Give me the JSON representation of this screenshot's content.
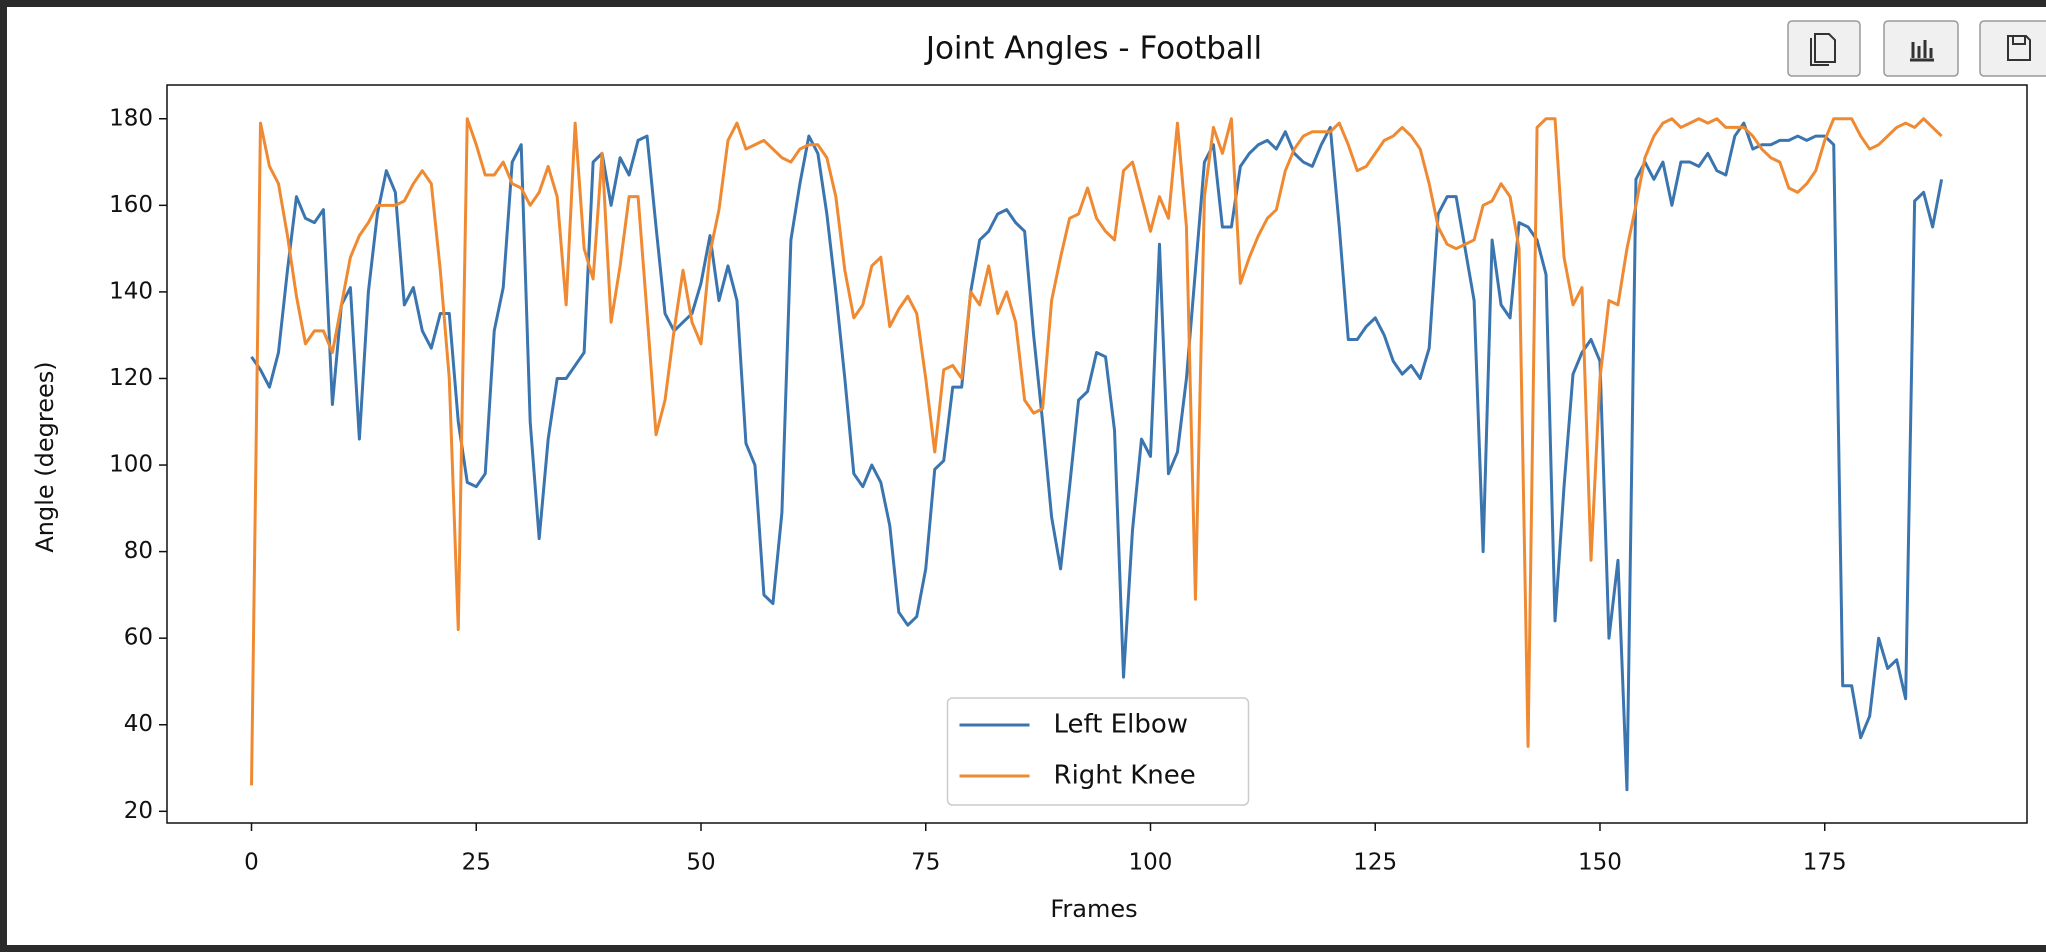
{
  "chart_data": {
    "type": "line",
    "title": "Joint Angles - Football",
    "xlabel": "Frames",
    "ylabel": "Angle (degrees)",
    "x": [
      0,
      1,
      2,
      3,
      4,
      5,
      6,
      7,
      8,
      9,
      10,
      11,
      12,
      13,
      14,
      15,
      16,
      17,
      18,
      19,
      20,
      21,
      22,
      23,
      24,
      25,
      26,
      27,
      28,
      29,
      30,
      31,
      32,
      33,
      34,
      35,
      36,
      37,
      38,
      39,
      40,
      41,
      42,
      43,
      44,
      45,
      46,
      47,
      48,
      49,
      50,
      51,
      52,
      53,
      54,
      55,
      56,
      57,
      58,
      59,
      60,
      61,
      62,
      63,
      64,
      65,
      66,
      67,
      68,
      69,
      70,
      71,
      72,
      73,
      74,
      75,
      76,
      77,
      78,
      79,
      80,
      81,
      82,
      83,
      84,
      85,
      86,
      87,
      88,
      89,
      90,
      91,
      92,
      93,
      94,
      95,
      96,
      97,
      98,
      99,
      100,
      101,
      102,
      103,
      104,
      105,
      106,
      107,
      108,
      109,
      110,
      111,
      112,
      113,
      114,
      115,
      116,
      117,
      118,
      119,
      120,
      121,
      122,
      123,
      124,
      125,
      126,
      127,
      128,
      129,
      130,
      131,
      132,
      133,
      134,
      135,
      136,
      137,
      138,
      139,
      140,
      141,
      142,
      143,
      144,
      145,
      146,
      147,
      148,
      149,
      150,
      151,
      152,
      153,
      154,
      155,
      156,
      157,
      158,
      159,
      160,
      161,
      162,
      163,
      164,
      165,
      166,
      167,
      168,
      169,
      170,
      171,
      172,
      173,
      174,
      175,
      176,
      177,
      178,
      179,
      180,
      181,
      182,
      183,
      184,
      185,
      186,
      187,
      188
    ],
    "series": [
      {
        "name": "Left Elbow",
        "color": "#3b75af",
        "values": [
          125,
          122,
          118,
          126,
          145,
          162,
          157,
          156,
          159,
          114,
          137,
          141,
          106,
          140,
          158,
          168,
          163,
          137,
          141,
          131,
          127,
          135,
          135,
          110,
          96,
          95,
          98,
          131,
          141,
          170,
          174,
          110,
          83,
          106,
          120,
          120,
          123,
          126,
          170,
          172,
          160,
          171,
          167,
          175,
          176,
          155,
          135,
          131,
          133,
          135,
          142,
          153,
          138,
          146,
          138,
          105,
          100,
          70,
          68,
          89,
          152,
          165,
          176,
          172,
          158,
          140,
          120,
          98,
          95,
          100,
          96,
          86,
          66,
          63,
          65,
          76,
          99,
          101,
          118,
          118,
          140,
          152,
          154,
          158,
          159,
          156,
          154,
          130,
          110,
          88,
          76,
          95,
          115,
          117,
          126,
          125,
          108,
          51,
          85,
          106,
          102,
          151,
          98,
          103,
          120,
          145,
          170,
          174,
          155,
          155,
          169,
          172,
          174,
          175,
          173,
          177,
          172,
          170,
          169,
          174,
          178,
          155,
          129,
          129,
          132,
          134,
          130,
          124,
          121,
          123,
          120,
          127,
          158,
          162,
          162,
          150,
          138,
          80,
          152,
          137,
          134,
          156,
          155,
          152,
          144,
          64,
          95,
          121,
          126,
          129,
          124,
          60,
          78,
          25,
          166,
          170,
          166,
          170,
          160,
          170,
          170,
          169,
          172,
          168,
          167,
          176,
          179,
          173,
          174,
          174,
          175,
          175,
          176,
          175,
          176,
          176,
          174,
          49,
          49,
          37,
          42,
          60,
          53,
          55,
          46,
          161,
          163,
          155,
          166
        ]
      },
      {
        "name": "Right Knee",
        "color": "#ef8a32",
        "values": [
          26,
          179,
          169,
          165,
          153,
          139,
          128,
          131,
          131,
          126,
          137,
          148,
          153,
          156,
          160,
          160,
          160,
          161,
          165,
          168,
          165,
          145,
          120,
          62,
          180,
          174,
          167,
          167,
          170,
          165,
          164,
          160,
          163,
          169,
          162,
          137,
          179,
          150,
          143,
          172,
          133,
          146,
          162,
          162,
          135,
          107,
          115,
          131,
          145,
          133,
          128,
          149,
          159,
          175,
          179,
          173,
          174,
          175,
          173,
          171,
          170,
          173,
          174,
          174,
          171,
          162,
          145,
          134,
          137,
          146,
          148,
          132,
          136,
          139,
          135,
          120,
          103,
          122,
          123,
          120,
          140,
          137,
          146,
          135,
          140,
          133,
          115,
          112,
          113,
          138,
          148,
          157,
          158,
          164,
          157,
          154,
          152,
          168,
          170,
          162,
          154,
          162,
          157,
          179,
          155,
          69,
          162,
          178,
          172,
          180,
          142,
          148,
          153,
          157,
          159,
          168,
          173,
          176,
          177,
          177,
          177,
          179,
          174,
          168,
          169,
          172,
          175,
          176,
          178,
          176,
          173,
          165,
          155,
          151,
          150,
          151,
          152,
          160,
          161,
          165,
          162,
          150,
          35,
          178,
          180,
          180,
          148,
          137,
          141,
          78,
          120,
          138,
          137,
          150,
          160,
          171,
          176,
          179,
          180,
          178,
          179,
          180,
          179,
          180,
          178,
          178,
          178,
          176,
          173,
          171,
          170,
          164,
          163,
          165,
          168,
          175,
          180,
          180,
          180,
          176,
          173,
          174,
          176,
          178,
          179,
          178,
          180,
          178,
          176
        ]
      }
    ],
    "xlim": [
      -9.4,
      197.5
    ],
    "xticks": [
      0,
      25,
      50,
      75,
      100,
      125,
      150,
      175
    ],
    "ylim": [
      17.3,
      187.8
    ],
    "yticks": [
      20,
      40,
      60,
      80,
      100,
      120,
      140,
      160,
      180
    ],
    "legend": "lower center",
    "grid": false
  }
}
